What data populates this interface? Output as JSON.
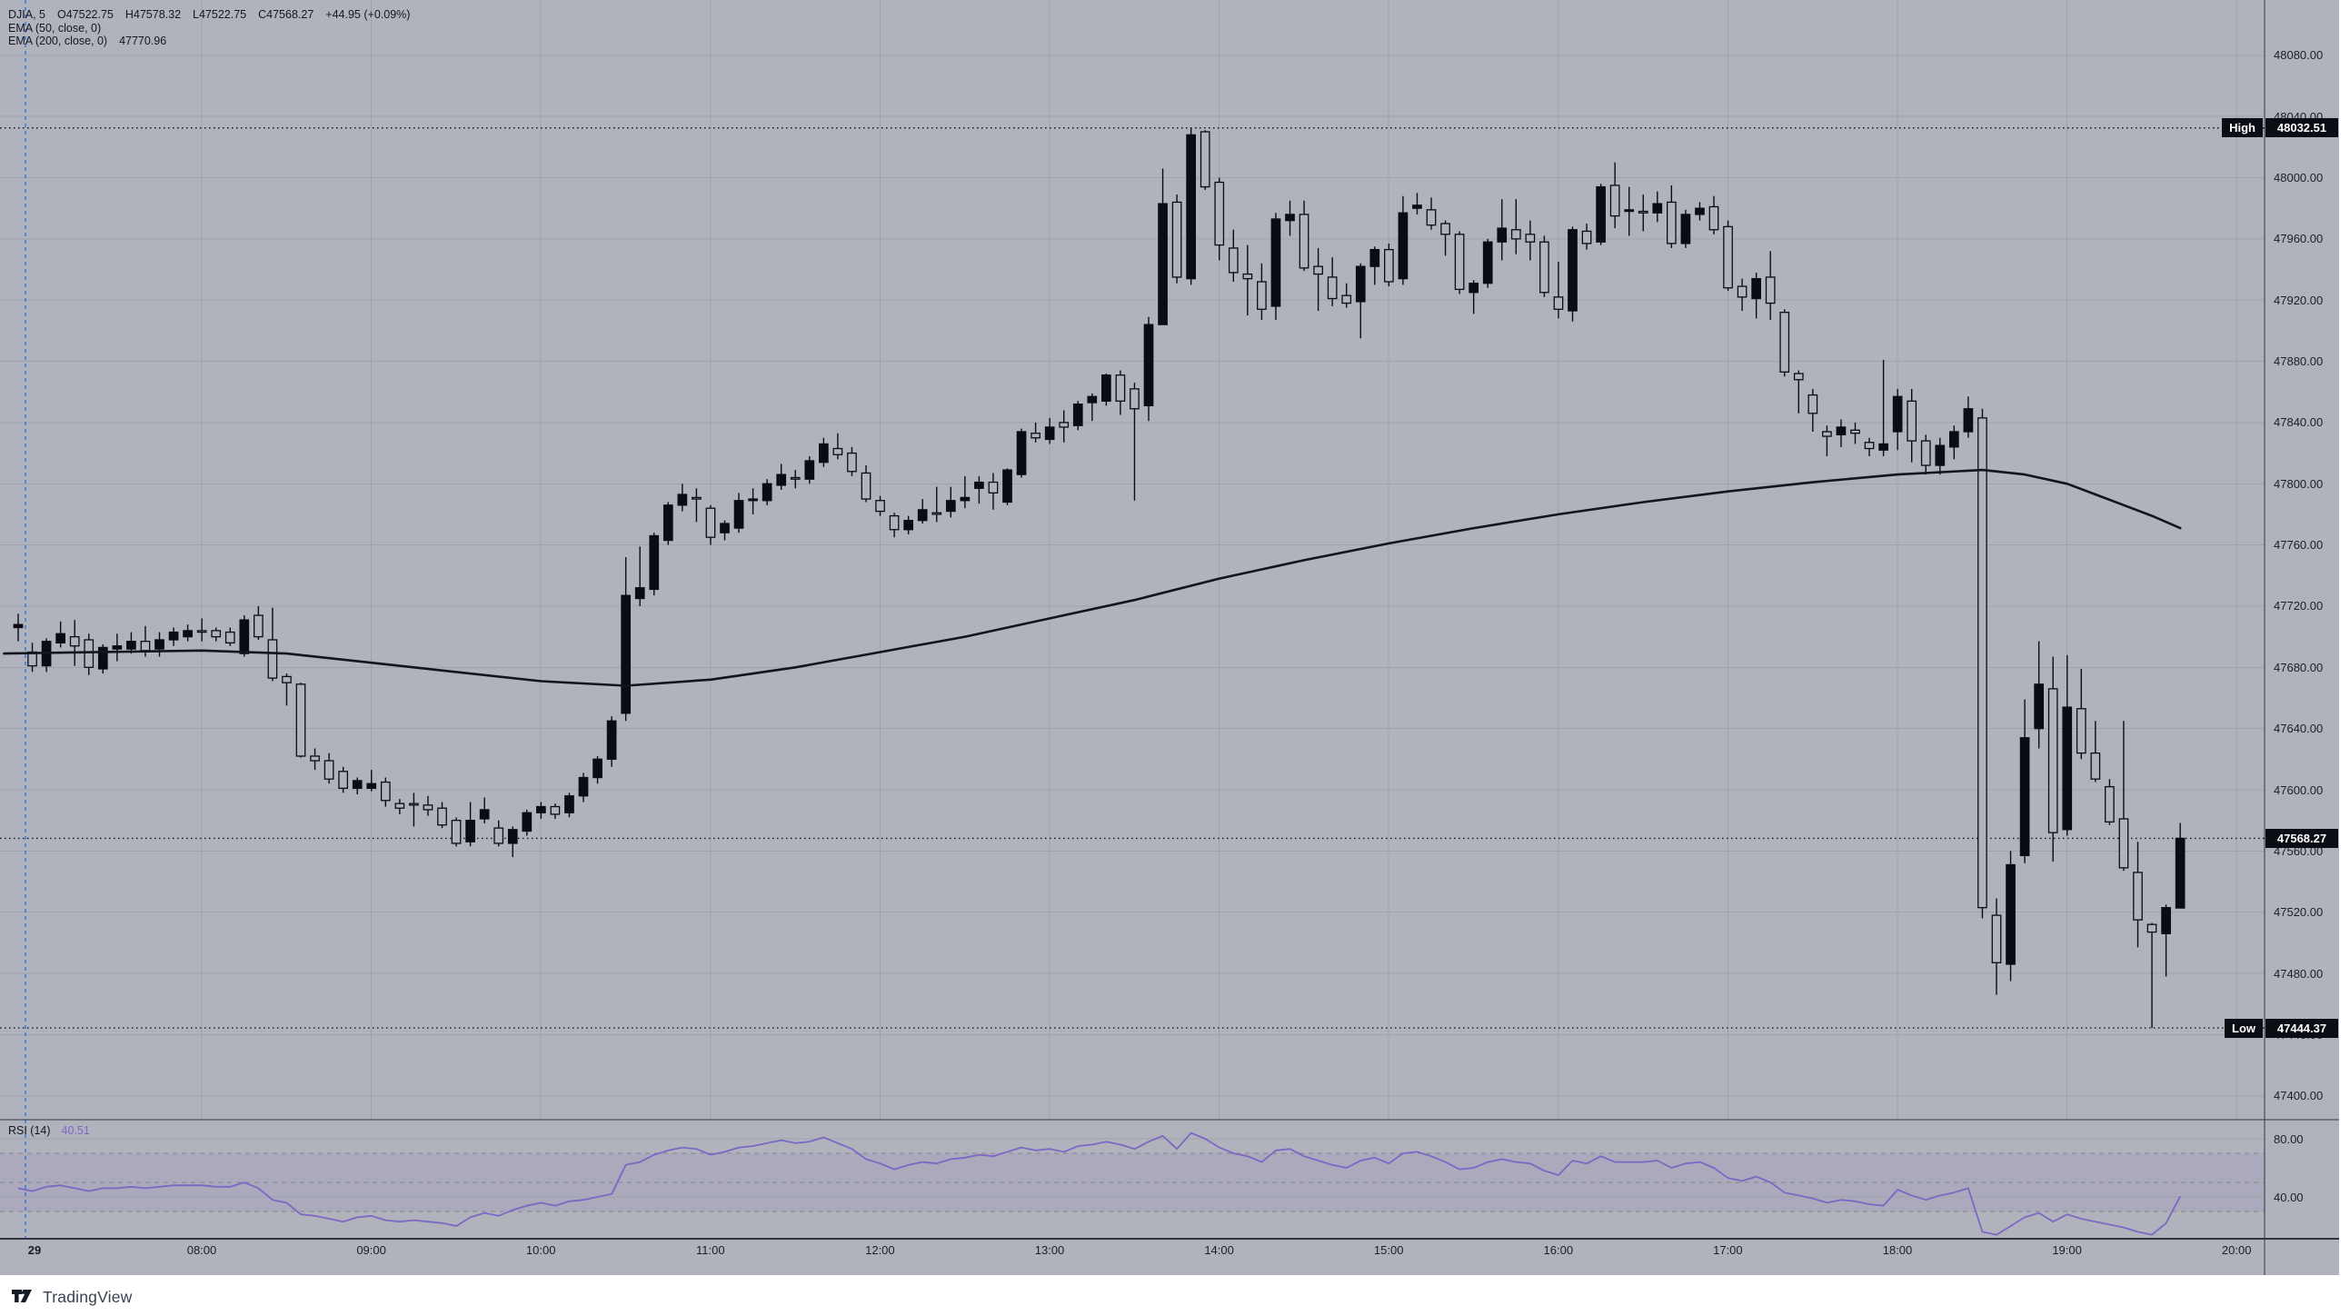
{
  "legend": {
    "title": "DJIA, 5",
    "ohlc": {
      "open": "O47522.75",
      "high": "H47578.32",
      "low": "L47522.75",
      "close": "C47568.27"
    },
    "change": "+44.95 (+0.09%)",
    "ema50_label": "EMA (50, close, 0)",
    "ema200_label": "EMA (200, close, 0)",
    "ema200_value": "47770.96"
  },
  "rsi_legend": {
    "label": "RSI (14)",
    "value": "40.51"
  },
  "badges": {
    "high_label": "High",
    "high_value": "48032.51",
    "low_label": "Low",
    "low_value": "47444.37",
    "close_value": "47568.27"
  },
  "price_axis": {
    "ticks": [
      "48080.00",
      "48040.00",
      "48000.00",
      "47960.00",
      "47920.00",
      "47880.00",
      "47840.00",
      "47800.00",
      "47760.00",
      "47720.00",
      "47680.00",
      "47640.00",
      "47600.00",
      "47560.00",
      "47520.00",
      "47480.00",
      "47440.00",
      "47400.00"
    ]
  },
  "rsi_axis": {
    "solid_ticks": [
      "80.00",
      "40.00"
    ],
    "dashed_levels": [
      70,
      50,
      30
    ],
    "band": [
      70,
      30
    ]
  },
  "time_axis": {
    "labels": [
      "29",
      "08:00",
      "09:00",
      "10:00",
      "11:00",
      "12:00",
      "13:00",
      "14:00",
      "15:00",
      "16:00",
      "17:00",
      "18:00",
      "19:00",
      "20:00"
    ]
  },
  "watermark": {
    "brand": "TradingView"
  },
  "colors": {
    "background": "#b0b3bc",
    "grid": "#9fa2ac",
    "candle": "#0a0c12",
    "text": "#1b1e28",
    "separator": "#30343f",
    "badge_bg": "#0b0d14",
    "rsi_line": "#7d67c5",
    "rsi_band_fill": "rgba(126,87,194,0.10)",
    "rsi_dash": "#83868f",
    "session_line": "#2962ff",
    "dotted_line": "#13151c"
  },
  "chart_data": {
    "type": "candlestick",
    "symbol": "DJIA",
    "interval_minutes": 5,
    "date_label": "29",
    "day_high": 48032.51,
    "day_low": 47444.37,
    "last_price": 47568.27,
    "ema200_last": 47770.96,
    "price_axis_range": [
      47380,
      48110
    ],
    "panes": [
      "price+EMA200",
      "RSI(14)"
    ],
    "candles": [
      [
        "06:55",
        47706,
        47715,
        47697,
        47708,
        46
      ],
      [
        "07:00",
        47690,
        47696,
        47677,
        47681,
        44
      ],
      [
        "07:05",
        47681,
        47699,
        47677,
        47697,
        47
      ],
      [
        "07:10",
        47696,
        47710,
        47693,
        47702,
        48
      ],
      [
        "07:15",
        47700,
        47711,
        47681,
        47694,
        46
      ],
      [
        "07:20",
        47698,
        47702,
        47675,
        47680,
        44
      ],
      [
        "07:25",
        47679,
        47695,
        47676,
        47693,
        46
      ],
      [
        "07:30",
        47692,
        47702,
        47684,
        47694,
        46
      ],
      [
        "07:35",
        47692,
        47703,
        47689,
        47697,
        47
      ],
      [
        "07:40",
        47697,
        47707,
        47687,
        47691,
        46
      ],
      [
        "07:45",
        47692,
        47703,
        47687,
        47698,
        47
      ],
      [
        "07:50",
        47698,
        47706,
        47694,
        47703,
        48
      ],
      [
        "07:55",
        47700,
        47708,
        47697,
        47704,
        48
      ],
      [
        "08:00",
        47704,
        47712,
        47697,
        47703,
        48
      ],
      [
        "08:05",
        47704,
        47706,
        47697,
        47700,
        47
      ],
      [
        "08:10",
        47703,
        47706,
        47694,
        47696,
        47
      ],
      [
        "08:15",
        47689,
        47714,
        47687,
        47711,
        50
      ],
      [
        "08:20",
        47714,
        47720,
        47698,
        47700,
        46
      ],
      [
        "08:25",
        47698,
        47719,
        47671,
        47673,
        38
      ],
      [
        "08:30",
        47674,
        47676,
        47655,
        47670,
        36
      ],
      [
        "08:35",
        47669,
        47670,
        47621,
        47622,
        28
      ],
      [
        "08:40",
        47622,
        47627,
        47613,
        47619,
        27
      ],
      [
        "08:45",
        47619,
        47624,
        47604,
        47607,
        25
      ],
      [
        "08:50",
        47612,
        47615,
        47598,
        47601,
        23
      ],
      [
        "08:55",
        47601,
        47608,
        47597,
        47606,
        26
      ],
      [
        "09:00",
        47601,
        47613,
        47599,
        47604,
        27
      ],
      [
        "09:05",
        47605,
        47608,
        47589,
        47593,
        24
      ],
      [
        "09:10",
        47591,
        47594,
        47584,
        47588,
        23
      ],
      [
        "09:15",
        47591,
        47598,
        47576,
        47590,
        24
      ],
      [
        "09:20",
        47590,
        47596,
        47583,
        47587,
        23
      ],
      [
        "09:25",
        47588,
        47592,
        47575,
        47577,
        22
      ],
      [
        "09:30",
        47580,
        47582,
        47563,
        47565,
        20
      ],
      [
        "09:35",
        47566,
        47592,
        47563,
        47580,
        26
      ],
      [
        "09:40",
        47581,
        47595,
        47578,
        47587,
        29
      ],
      [
        "09:45",
        47575,
        47580,
        47563,
        47565,
        27
      ],
      [
        "09:50",
        47565,
        47576,
        47556,
        47574,
        31
      ],
      [
        "09:55",
        47573,
        47587,
        47570,
        47585,
        34
      ],
      [
        "10:00",
        47585,
        47592,
        47581,
        47589,
        36
      ],
      [
        "10:05",
        47589,
        47591,
        47581,
        47584,
        34
      ],
      [
        "10:10",
        47585,
        47598,
        47582,
        47596,
        37
      ],
      [
        "10:15",
        47596,
        47611,
        47592,
        47608,
        38
      ],
      [
        "10:20",
        47608,
        47622,
        47604,
        47620,
        40
      ],
      [
        "10:25",
        47620,
        47648,
        47615,
        47645,
        42
      ],
      [
        "10:30",
        47650,
        47752,
        47645,
        47727,
        62
      ],
      [
        "10:35",
        47725,
        47759,
        47720,
        47732,
        64
      ],
      [
        "10:40",
        47731,
        47768,
        47727,
        47766,
        69
      ],
      [
        "10:45",
        47763,
        47788,
        47760,
        47786,
        72
      ],
      [
        "10:50",
        47786,
        47800,
        47782,
        47793,
        74
      ],
      [
        "10:55",
        47791,
        47797,
        47775,
        47790,
        73
      ],
      [
        "11:00",
        47784,
        47786,
        47760,
        47765,
        69
      ],
      [
        "11:05",
        47768,
        47776,
        47763,
        47774,
        71
      ],
      [
        "11:10",
        47771,
        47794,
        47768,
        47789,
        74
      ],
      [
        "11:15",
        47789,
        47797,
        47780,
        47790,
        75
      ],
      [
        "11:20",
        47789,
        47803,
        47786,
        47800,
        77
      ],
      [
        "11:25",
        47799,
        47813,
        47796,
        47806,
        79
      ],
      [
        "11:30",
        47804,
        47809,
        47797,
        47803,
        77
      ],
      [
        "11:35",
        47803,
        47818,
        47800,
        47815,
        78
      ],
      [
        "11:40",
        47814,
        47830,
        47811,
        47826,
        81
      ],
      [
        "11:45",
        47823,
        47833,
        47816,
        47819,
        77
      ],
      [
        "11:50",
        47820,
        47824,
        47805,
        47808,
        73
      ],
      [
        "11:55",
        47807,
        47812,
        47788,
        47790,
        66
      ],
      [
        "12:00",
        47789,
        47792,
        47779,
        47782,
        63
      ],
      [
        "12:05",
        47779,
        47781,
        47765,
        47770,
        59
      ],
      [
        "12:10",
        47770,
        47779,
        47767,
        47776,
        62
      ],
      [
        "12:15",
        47776,
        47790,
        47774,
        47783,
        64
      ],
      [
        "12:20",
        47781,
        47798,
        47775,
        47780,
        63
      ],
      [
        "12:25",
        47782,
        47798,
        47778,
        47789,
        66
      ],
      [
        "12:30",
        47789,
        47805,
        47784,
        47791,
        67
      ],
      [
        "12:35",
        47797,
        47805,
        47787,
        47801,
        69
      ],
      [
        "12:40",
        47801,
        47807,
        47783,
        47794,
        68
      ],
      [
        "12:45",
        47788,
        47810,
        47786,
        47809,
        71
      ],
      [
        "12:50",
        47806,
        47836,
        47804,
        47834,
        74
      ],
      [
        "12:55",
        47833,
        47840,
        47827,
        47830,
        72
      ],
      [
        "13:00",
        47829,
        47843,
        47826,
        47837,
        73
      ],
      [
        "13:05",
        47840,
        47848,
        47827,
        47837,
        71
      ],
      [
        "13:10",
        47838,
        47854,
        47835,
        47852,
        75
      ],
      [
        "13:15",
        47853,
        47859,
        47841,
        47857,
        76
      ],
      [
        "13:20",
        47854,
        47872,
        47851,
        47871,
        78
      ],
      [
        "13:25",
        47871,
        47874,
        47845,
        47854,
        76
      ],
      [
        "13:30",
        47862,
        47866,
        47789,
        47849,
        73
      ],
      [
        "13:35",
        47851,
        47909,
        47841,
        47904,
        78
      ],
      [
        "13:40",
        47904,
        48006,
        47904,
        47983,
        82
      ],
      [
        "13:45",
        47984,
        47989,
        47931,
        47935,
        73
      ],
      [
        "13:50",
        47934,
        48032.51,
        47930,
        48028,
        84
      ],
      [
        "13:55",
        48030,
        48031,
        47992,
        47994,
        80
      ],
      [
        "14:00",
        47997,
        48000,
        47946,
        47956,
        74
      ],
      [
        "14:05",
        47954,
        47966,
        47932,
        47938,
        70
      ],
      [
        "14:10",
        47937,
        47956,
        47910,
        47934,
        68
      ],
      [
        "14:15",
        47932,
        47944,
        47907,
        47914,
        64
      ],
      [
        "14:20",
        47916,
        47977,
        47907,
        47973,
        72
      ],
      [
        "14:25",
        47972,
        47985,
        47962,
        47976,
        73
      ],
      [
        "14:30",
        47976,
        47985,
        47939,
        47941,
        68
      ],
      [
        "14:35",
        47942,
        47954,
        47913,
        47937,
        65
      ],
      [
        "14:40",
        47935,
        47948,
        47916,
        47921,
        62
      ],
      [
        "14:45",
        47923,
        47931,
        47915,
        47918,
        60
      ],
      [
        "14:50",
        47919,
        47944,
        47895,
        47942,
        65
      ],
      [
        "14:55",
        47942,
        47955,
        47930,
        47953,
        67
      ],
      [
        "15:00",
        47953,
        47957,
        47929,
        47932,
        63
      ],
      [
        "15:05",
        47934,
        47988,
        47930,
        47977,
        70
      ],
      [
        "15:10",
        47980,
        47990,
        47976,
        47982,
        71
      ],
      [
        "15:15",
        47979,
        47987,
        47966,
        47969,
        68
      ],
      [
        "15:20",
        47970,
        47972,
        47949,
        47963,
        64
      ],
      [
        "15:25",
        47963,
        47965,
        47924,
        47927,
        59
      ],
      [
        "15:30",
        47925,
        47933,
        47911,
        47931,
        60
      ],
      [
        "15:35",
        47931,
        47960,
        47928,
        47958,
        64
      ],
      [
        "15:40",
        47958,
        47986,
        47946,
        47967,
        66
      ],
      [
        "15:45",
        47966,
        47986,
        47950,
        47960,
        64
      ],
      [
        "15:50",
        47963,
        47972,
        47946,
        47958,
        63
      ],
      [
        "15:55",
        47958,
        47962,
        47922,
        47925,
        58
      ],
      [
        "16:00",
        47922,
        47945,
        47908,
        47914,
        55
      ],
      [
        "16:05",
        47913,
        47968,
        47906,
        47966,
        65
      ],
      [
        "16:10",
        47965,
        47970,
        47953,
        47957,
        63
      ],
      [
        "16:15",
        47958,
        47996,
        47956,
        47994,
        68
      ],
      [
        "16:20",
        47995,
        48010,
        47967,
        47975,
        64
      ],
      [
        "16:25",
        47978,
        47994,
        47962,
        47979,
        64
      ],
      [
        "16:30",
        47978,
        47989,
        47965,
        47977,
        64
      ],
      [
        "16:35",
        47977,
        47991,
        47971,
        47983,
        65
      ],
      [
        "16:40",
        47984,
        47995,
        47954,
        47957,
        60
      ],
      [
        "16:45",
        47957,
        47979,
        47954,
        47976,
        63
      ],
      [
        "16:50",
        47976,
        47984,
        47972,
        47980,
        64
      ],
      [
        "16:55",
        47981,
        47988,
        47963,
        47966,
        60
      ],
      [
        "17:00",
        47968,
        47972,
        47926,
        47928,
        53
      ],
      [
        "17:05",
        47929,
        47934,
        47913,
        47922,
        51
      ],
      [
        "17:10",
        47921,
        47938,
        47908,
        47934,
        54
      ],
      [
        "17:15",
        47935,
        47952,
        47907,
        47918,
        50
      ],
      [
        "17:20",
        47912,
        47914,
        47870,
        47873,
        43
      ],
      [
        "17:25",
        47872,
        47874,
        47846,
        47868,
        41
      ],
      [
        "17:30",
        47858,
        47862,
        47834,
        47846,
        39
      ],
      [
        "17:35",
        47834,
        47838,
        47818,
        47831,
        36
      ],
      [
        "17:40",
        47832,
        47842,
        47824,
        47837,
        38
      ],
      [
        "17:45",
        47835,
        47840,
        47826,
        47833,
        37
      ],
      [
        "17:50",
        47827,
        47830,
        47818,
        47823,
        35
      ],
      [
        "17:55",
        47822,
        47881,
        47818,
        47826,
        34
      ],
      [
        "18:00",
        47834,
        47862,
        47822,
        47857,
        45
      ],
      [
        "18:05",
        47854,
        47862,
        47814,
        47828,
        41
      ],
      [
        "18:10",
        47828,
        47832,
        47806,
        47812,
        38
      ],
      [
        "18:15",
        47812,
        47830,
        47806,
        47825,
        41
      ],
      [
        "18:20",
        47824,
        47838,
        47816,
        47834,
        43
      ],
      [
        "18:25",
        47834,
        47857,
        47830,
        47849,
        46
      ],
      [
        "18:30",
        47843,
        47849,
        47516,
        47523,
        16
      ],
      [
        "18:35",
        47518,
        47529,
        47466,
        47487,
        14
      ],
      [
        "18:40",
        47486,
        47560,
        47475,
        47551,
        20
      ],
      [
        "18:45",
        47557,
        47659,
        47552,
        47634,
        26
      ],
      [
        "18:50",
        47640,
        47697,
        47627,
        47669,
        29
      ],
      [
        "18:55",
        47666,
        47687,
        47553,
        47572,
        23
      ],
      [
        "19:00",
        47574,
        47688,
        47570,
        47654,
        28
      ],
      [
        "19:05",
        47653,
        47679,
        47620,
        47624,
        25
      ],
      [
        "19:10",
        47624,
        47645,
        47605,
        47607,
        23
      ],
      [
        "19:15",
        47602,
        47607,
        47577,
        47579,
        21
      ],
      [
        "19:20",
        47581,
        47645,
        47547,
        47549,
        19
      ],
      [
        "19:25",
        47546,
        47566,
        47497,
        47515,
        16
      ],
      [
        "19:30",
        47512,
        47513,
        47444.37,
        47507,
        14
      ],
      [
        "19:35",
        47506,
        47525,
        47478,
        47523,
        22
      ],
      [
        "19:40",
        47522.75,
        47578.32,
        47522.75,
        47568.27,
        40.51
      ]
    ],
    "ema200_points": [
      [
        "06:50",
        47689
      ],
      [
        "08:00",
        47691
      ],
      [
        "08:30",
        47689
      ],
      [
        "09:00",
        47683
      ],
      [
        "09:30",
        47677
      ],
      [
        "10:00",
        47671
      ],
      [
        "10:30",
        47668
      ],
      [
        "11:00",
        47672
      ],
      [
        "11:30",
        47680
      ],
      [
        "12:00",
        47690
      ],
      [
        "12:30",
        47700
      ],
      [
        "13:00",
        47712
      ],
      [
        "13:30",
        47724
      ],
      [
        "14:00",
        47738
      ],
      [
        "14:30",
        47750
      ],
      [
        "15:00",
        47761
      ],
      [
        "15:30",
        47771
      ],
      [
        "16:00",
        47780
      ],
      [
        "16:30",
        47788
      ],
      [
        "17:00",
        47795
      ],
      [
        "17:30",
        47801
      ],
      [
        "18:00",
        47806
      ],
      [
        "18:30",
        47809
      ],
      [
        "18:45",
        47806
      ],
      [
        "19:00",
        47800
      ],
      [
        "19:10",
        47793
      ],
      [
        "19:20",
        47786
      ],
      [
        "19:30",
        47779
      ],
      [
        "19:40",
        47771
      ]
    ],
    "rsi_last": 40.51
  }
}
